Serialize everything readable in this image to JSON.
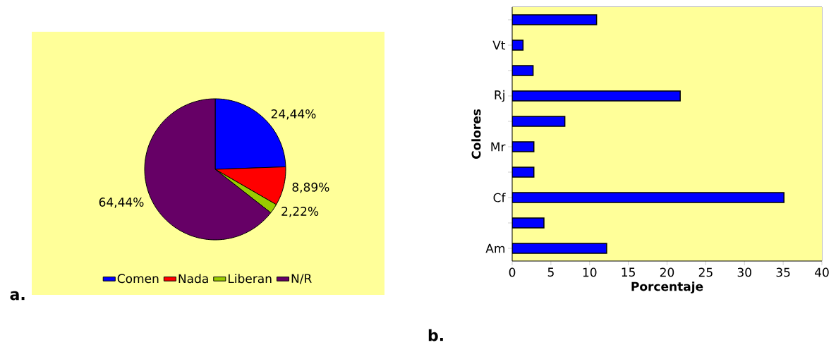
{
  "chart_data": [
    {
      "type": "pie",
      "categories": [
        "Comen",
        "Nada",
        "Liberan",
        "N/R"
      ],
      "values": [
        24.44,
        8.89,
        2.22,
        64.44
      ],
      "colors": [
        "#0000ff",
        "#ff0000",
        "#99cc00",
        "#660066"
      ],
      "value_labels": [
        "24,44%",
        "8,89%",
        "2,22%",
        "64,44%"
      ],
      "legend": "bottom",
      "annotations": [
        "a."
      ]
    },
    {
      "type": "bar",
      "orientation": "horizontal",
      "categories": [
        null,
        "Vt",
        null,
        "Rj",
        null,
        "Mr",
        null,
        "Cf",
        null,
        "Am"
      ],
      "values": [
        10.9,
        1.4,
        2.7,
        21.7,
        6.8,
        2.8,
        2.8,
        35.1,
        4.1,
        12.2
      ],
      "color": "#0000ff",
      "xlim": [
        0,
        40
      ],
      "xticks": [
        0,
        5,
        10,
        15,
        20,
        25,
        30,
        35,
        40
      ],
      "xlabel": "Porcentaje",
      "ylabel": "Colores",
      "grid": false,
      "annotations": [
        "b."
      ]
    }
  ]
}
